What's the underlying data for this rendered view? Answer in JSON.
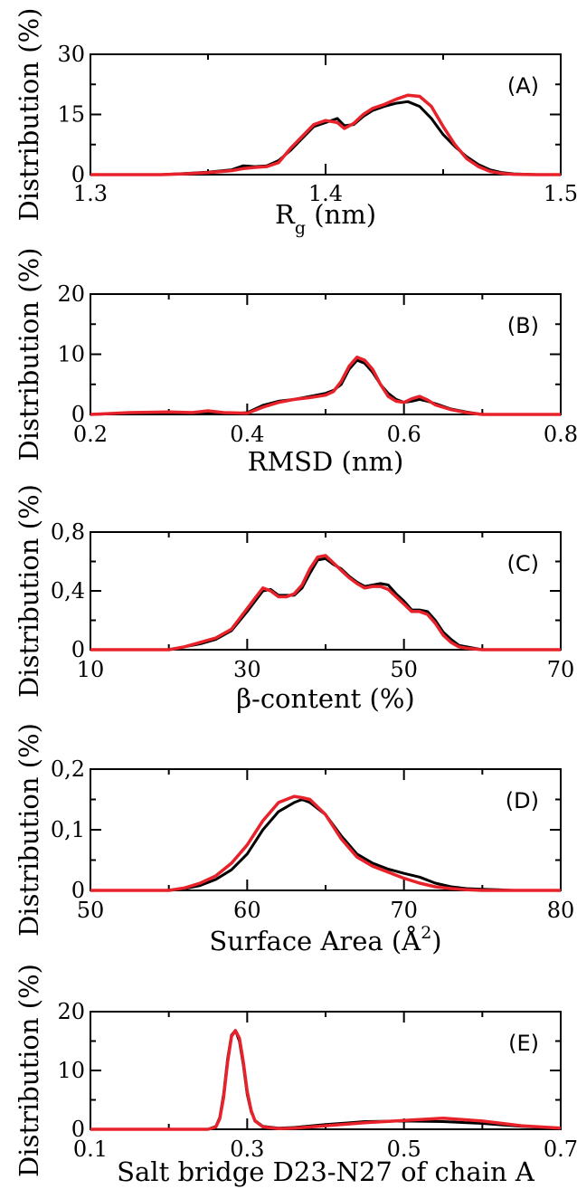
{
  "colors": {
    "series_black": "#000000",
    "series_red": "#e8222a",
    "axis": "#000000",
    "background": "#ffffff"
  },
  "chart_data": [
    {
      "type": "line",
      "panel_label": "(A)",
      "xlabel": "R",
      "xlabel_sub": "g",
      "xlabel_rest": " (nm)",
      "ylabel": "Distribution (%)",
      "xlim": [
        1.3,
        1.5
      ],
      "ylim": [
        0,
        30
      ],
      "x_ticks": [
        "1.3",
        "1.4",
        "1.5"
      ],
      "y_ticks": [
        "0",
        "15",
        "30"
      ],
      "series": [
        {
          "color": "#000000",
          "x": [
            1.3,
            1.33,
            1.34,
            1.35,
            1.36,
            1.365,
            1.37,
            1.375,
            1.38,
            1.385,
            1.39,
            1.395,
            1.4,
            1.405,
            1.408,
            1.412,
            1.416,
            1.42,
            1.425,
            1.43,
            1.435,
            1.44,
            1.445,
            1.45,
            1.455,
            1.46,
            1.465,
            1.47,
            1.475,
            1.48,
            1.49,
            1.5
          ],
          "y": [
            0,
            0,
            0.3,
            0.6,
            1.2,
            2.2,
            2.0,
            2.2,
            3.5,
            6.0,
            9.0,
            12.0,
            13.0,
            14.0,
            12.2,
            12.5,
            14.5,
            16.0,
            17.0,
            17.8,
            18.2,
            17.0,
            14.0,
            10.0,
            7.0,
            4.5,
            2.5,
            1.2,
            0.5,
            0.2,
            0,
            0
          ]
        },
        {
          "color": "#e8222a",
          "x": [
            1.3,
            1.33,
            1.34,
            1.35,
            1.36,
            1.365,
            1.37,
            1.375,
            1.38,
            1.385,
            1.39,
            1.395,
            1.4,
            1.405,
            1.408,
            1.412,
            1.416,
            1.42,
            1.425,
            1.43,
            1.435,
            1.44,
            1.445,
            1.45,
            1.455,
            1.46,
            1.465,
            1.47,
            1.475,
            1.48,
            1.49,
            1.5
          ],
          "y": [
            0,
            0,
            0.2,
            0.5,
            1.0,
            1.5,
            1.8,
            2.0,
            3.0,
            6.5,
            9.5,
            12.5,
            13.5,
            13.0,
            11.5,
            12.8,
            15.0,
            16.5,
            17.5,
            18.8,
            19.8,
            19.5,
            17.0,
            12.0,
            7.5,
            4.0,
            2.0,
            0.8,
            0.3,
            0.1,
            0,
            0
          ]
        }
      ]
    },
    {
      "type": "line",
      "panel_label": "(B)",
      "xlabel": "RMSD (nm)",
      "ylabel": "Distribution (%)",
      "xlim": [
        0.2,
        0.8
      ],
      "ylim": [
        0,
        20
      ],
      "x_ticks": [
        "0.2",
        "0.4",
        "0.6",
        "0.8"
      ],
      "y_ticks": [
        "0",
        "10",
        "20"
      ],
      "series": [
        {
          "color": "#000000",
          "x": [
            0.2,
            0.25,
            0.3,
            0.33,
            0.36,
            0.38,
            0.4,
            0.42,
            0.44,
            0.46,
            0.48,
            0.5,
            0.51,
            0.52,
            0.53,
            0.54,
            0.55,
            0.56,
            0.57,
            0.58,
            0.59,
            0.6,
            0.61,
            0.62,
            0.63,
            0.64,
            0.66,
            0.68,
            0.7,
            0.75,
            0.8
          ],
          "y": [
            0,
            0.2,
            0.1,
            0.3,
            0.2,
            0.1,
            0.3,
            1.5,
            2.2,
            2.5,
            3.0,
            3.5,
            4.0,
            5.0,
            7.5,
            9.0,
            8.5,
            7.0,
            5.0,
            3.5,
            2.5,
            2.0,
            2.2,
            2.5,
            2.2,
            1.8,
            0.9,
            0.4,
            0,
            0,
            0
          ]
        },
        {
          "color": "#e8222a",
          "x": [
            0.2,
            0.25,
            0.3,
            0.33,
            0.35,
            0.37,
            0.4,
            0.42,
            0.44,
            0.46,
            0.48,
            0.5,
            0.51,
            0.52,
            0.53,
            0.54,
            0.55,
            0.56,
            0.57,
            0.58,
            0.59,
            0.6,
            0.61,
            0.62,
            0.63,
            0.64,
            0.66,
            0.68,
            0.7,
            0.75,
            0.8
          ],
          "y": [
            0,
            0.3,
            0.4,
            0.3,
            0.6,
            0.3,
            0.2,
            1.2,
            2.0,
            2.5,
            2.8,
            3.2,
            3.8,
            5.5,
            8.0,
            9.5,
            9.0,
            7.5,
            5.0,
            3.0,
            2.2,
            2.0,
            2.6,
            3.0,
            2.4,
            1.6,
            0.8,
            0.3,
            0,
            0,
            0
          ]
        }
      ]
    },
    {
      "type": "line",
      "panel_label": "(C)",
      "xlabel": "β-content (%)",
      "ylabel": "Distribution (%)",
      "xlim": [
        10,
        70
      ],
      "ylim": [
        0,
        0.8
      ],
      "x_ticks": [
        "10",
        "30",
        "50",
        "70"
      ],
      "y_ticks": [
        "0",
        "0,4",
        "0,8"
      ],
      "series": [
        {
          "color": "#000000",
          "x": [
            10,
            20,
            22,
            24,
            26,
            28,
            30,
            31,
            32,
            33,
            34,
            35,
            36,
            37,
            38,
            39,
            40,
            41,
            42,
            43,
            44,
            45,
            46,
            47,
            48,
            49,
            50,
            51,
            52,
            53,
            54,
            55,
            56,
            57,
            58,
            60,
            70
          ],
          "y": [
            0,
            0,
            0.02,
            0.04,
            0.07,
            0.13,
            0.26,
            0.33,
            0.4,
            0.41,
            0.37,
            0.37,
            0.37,
            0.42,
            0.52,
            0.61,
            0.62,
            0.58,
            0.55,
            0.5,
            0.46,
            0.43,
            0.44,
            0.45,
            0.44,
            0.38,
            0.33,
            0.27,
            0.27,
            0.26,
            0.2,
            0.12,
            0.07,
            0.03,
            0.02,
            0,
            0
          ]
        },
        {
          "color": "#e8222a",
          "x": [
            10,
            20,
            22,
            24,
            26,
            28,
            30,
            31,
            32,
            33,
            34,
            35,
            36,
            37,
            38,
            39,
            40,
            41,
            42,
            43,
            44,
            45,
            46,
            47,
            48,
            49,
            50,
            51,
            52,
            53,
            54,
            55,
            56,
            57,
            58,
            60,
            70
          ],
          "y": [
            0,
            0,
            0.02,
            0.05,
            0.08,
            0.14,
            0.28,
            0.35,
            0.42,
            0.4,
            0.36,
            0.36,
            0.38,
            0.44,
            0.55,
            0.63,
            0.64,
            0.59,
            0.54,
            0.49,
            0.45,
            0.42,
            0.43,
            0.43,
            0.41,
            0.36,
            0.31,
            0.26,
            0.26,
            0.24,
            0.18,
            0.1,
            0.05,
            0.02,
            0.01,
            0,
            0
          ]
        }
      ]
    },
    {
      "type": "line",
      "panel_label": "(D)",
      "xlabel": "Surface Area (Å",
      "xlabel_sup": "2",
      "xlabel_rest": ")",
      "ylabel": "Distribution (%)",
      "xlim": [
        50,
        80
      ],
      "ylim": [
        0,
        0.2
      ],
      "x_ticks": [
        "50",
        "60",
        "70",
        "80"
      ],
      "y_ticks": [
        "0",
        "0,1",
        "0,2"
      ],
      "series": [
        {
          "color": "#000000",
          "x": [
            50,
            55,
            56,
            57,
            58,
            59,
            60,
            61,
            62,
            63,
            63.5,
            64,
            65,
            66,
            67,
            68,
            69,
            70,
            71,
            72,
            73,
            74,
            75,
            76,
            77,
            80
          ],
          "y": [
            0,
            0,
            0.003,
            0.008,
            0.018,
            0.034,
            0.06,
            0.1,
            0.13,
            0.145,
            0.15,
            0.145,
            0.125,
            0.09,
            0.06,
            0.045,
            0.035,
            0.028,
            0.022,
            0.012,
            0.006,
            0.003,
            0.002,
            0.001,
            0,
            0
          ]
        },
        {
          "color": "#e8222a",
          "x": [
            50,
            55,
            56,
            57,
            58,
            59,
            60,
            61,
            62,
            63,
            63.5,
            64,
            65,
            66,
            67,
            68,
            69,
            70,
            71,
            72,
            73,
            74,
            75,
            76,
            77,
            80
          ],
          "y": [
            0,
            0,
            0.004,
            0.012,
            0.024,
            0.045,
            0.075,
            0.115,
            0.145,
            0.155,
            0.153,
            0.15,
            0.125,
            0.085,
            0.055,
            0.04,
            0.03,
            0.02,
            0.012,
            0.006,
            0.003,
            0.001,
            0,
            0,
            0,
            0
          ]
        }
      ]
    },
    {
      "type": "line",
      "panel_label": "(E)",
      "xlabel": "Salt bridge D23-N27 of chain A",
      "ylabel": "Distribution (%)",
      "xlim": [
        0.1,
        0.7
      ],
      "ylim": [
        0,
        20
      ],
      "x_ticks": [
        "0.1",
        "0.3",
        "0.5",
        "0.7"
      ],
      "y_ticks": [
        "0",
        "10",
        "20"
      ],
      "series": [
        {
          "color": "#000000",
          "x": [
            0.1,
            0.25,
            0.26,
            0.265,
            0.27,
            0.275,
            0.28,
            0.285,
            0.29,
            0.295,
            0.3,
            0.305,
            0.31,
            0.32,
            0.34,
            0.36,
            0.4,
            0.45,
            0.5,
            0.55,
            0.6,
            0.65,
            0.7
          ],
          "y": [
            0,
            0,
            0.5,
            2.0,
            6.0,
            12.0,
            16.0,
            16.8,
            15.0,
            11.0,
            6.0,
            3.0,
            1.5,
            0.5,
            0.2,
            0.3,
            0.8,
            1.3,
            1.4,
            1.3,
            1.0,
            0.5,
            0.2
          ]
        },
        {
          "color": "#e8222a",
          "x": [
            0.1,
            0.25,
            0.26,
            0.265,
            0.27,
            0.275,
            0.28,
            0.285,
            0.29,
            0.295,
            0.3,
            0.305,
            0.31,
            0.32,
            0.34,
            0.36,
            0.4,
            0.45,
            0.5,
            0.55,
            0.6,
            0.65,
            0.7
          ],
          "y": [
            0,
            0,
            0.4,
            1.8,
            5.5,
            11.5,
            15.8,
            16.8,
            15.5,
            11.5,
            6.5,
            3.2,
            1.4,
            0.4,
            0.1,
            0.2,
            0.6,
            1.1,
            1.5,
            1.9,
            1.4,
            0.6,
            0.2
          ]
        }
      ]
    }
  ]
}
